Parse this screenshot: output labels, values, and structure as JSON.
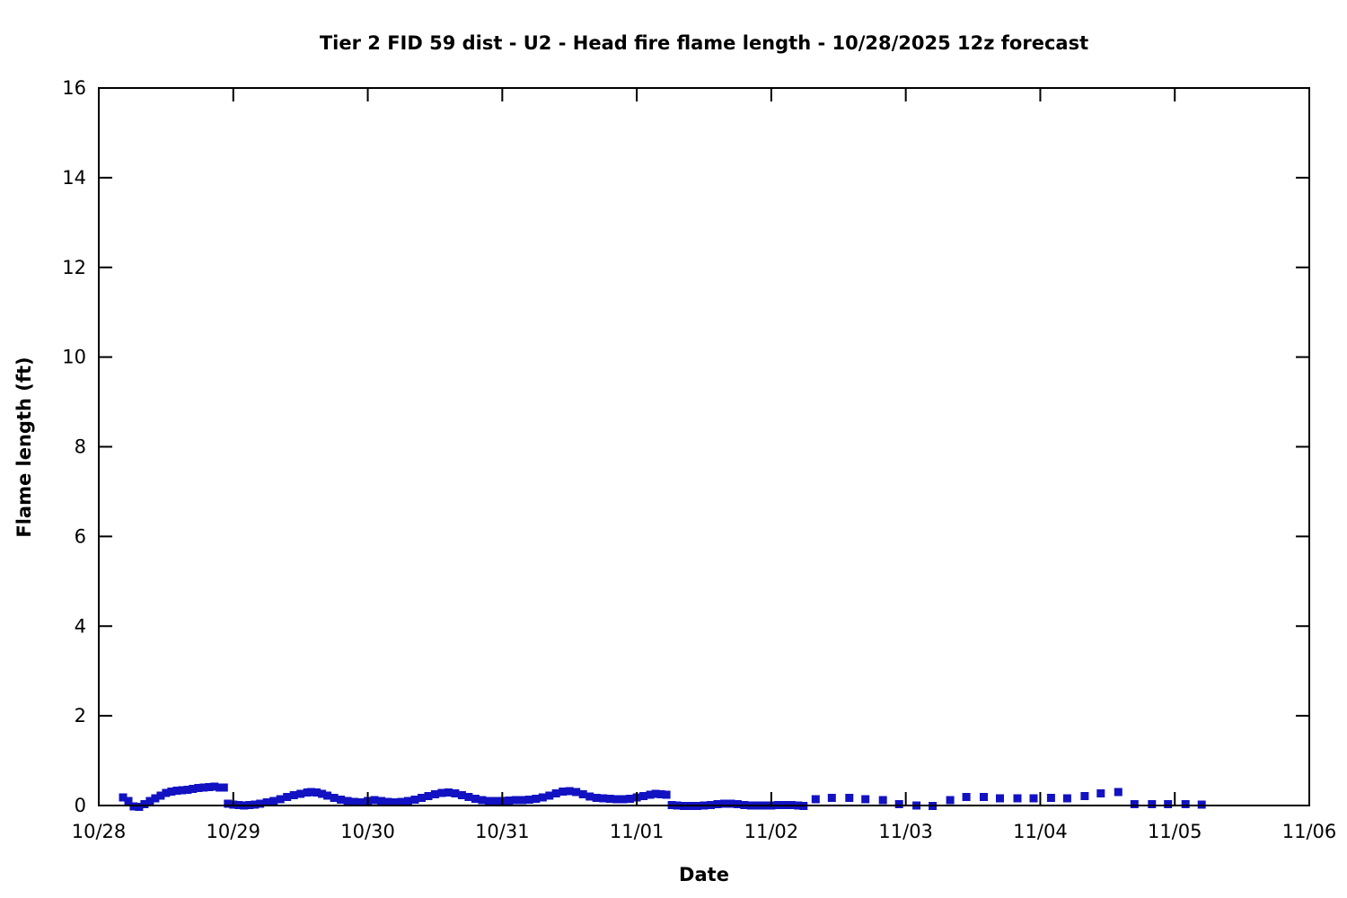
{
  "title": "Tier 2 FID 59 dist - U2 - Head fire flame length - 10/28/2025 12z forecast",
  "chart_data": {
    "type": "scatter",
    "title": "Tier 2 FID 59 dist - U2 - Head fire flame length - 10/28/2025 12z forecast",
    "xlabel": "Date",
    "ylabel": "Flame length (ft)",
    "xlim_days": [
      0,
      9
    ],
    "ylim": [
      0,
      16
    ],
    "grid": false,
    "legend": "none",
    "x_ticks": [
      {
        "t": 0,
        "label": "10/28"
      },
      {
        "t": 1,
        "label": "10/29"
      },
      {
        "t": 2,
        "label": "10/30"
      },
      {
        "t": 3,
        "label": "10/31"
      },
      {
        "t": 4,
        "label": "11/01"
      },
      {
        "t": 5,
        "label": "11/02"
      },
      {
        "t": 6,
        "label": "11/03"
      },
      {
        "t": 7,
        "label": "11/04"
      },
      {
        "t": 8,
        "label": "11/05"
      },
      {
        "t": 9,
        "label": "11/06"
      }
    ],
    "y_ticks": [
      0,
      2,
      4,
      6,
      8,
      10,
      12,
      14,
      16
    ],
    "marker_color": "#1212c2",
    "marker_size": 9,
    "axis_color": "#000000",
    "series": [
      {
        "name": "head-fire-flame-length-hourly",
        "style": "dense",
        "points": [
          [
            0.18,
            0.18
          ],
          [
            0.22,
            0.1
          ],
          [
            0.26,
            -0.02
          ],
          [
            0.3,
            -0.03
          ],
          [
            0.34,
            0.03
          ],
          [
            0.38,
            0.1
          ],
          [
            0.42,
            0.16
          ],
          [
            0.46,
            0.22
          ],
          [
            0.5,
            0.28
          ],
          [
            0.54,
            0.31
          ],
          [
            0.58,
            0.33
          ],
          [
            0.62,
            0.34
          ],
          [
            0.66,
            0.35
          ],
          [
            0.7,
            0.37
          ],
          [
            0.74,
            0.39
          ],
          [
            0.78,
            0.4
          ],
          [
            0.82,
            0.41
          ],
          [
            0.86,
            0.42
          ],
          [
            0.9,
            0.4
          ],
          [
            0.93,
            0.4
          ],
          [
            0.96,
            0.04
          ],
          [
            1.0,
            0.02
          ],
          [
            1.04,
            0.01
          ],
          [
            1.08,
            0.0
          ],
          [
            1.12,
            0.01
          ],
          [
            1.16,
            0.02
          ],
          [
            1.2,
            0.04
          ],
          [
            1.25,
            0.07
          ],
          [
            1.3,
            0.1
          ],
          [
            1.35,
            0.14
          ],
          [
            1.4,
            0.19
          ],
          [
            1.45,
            0.23
          ],
          [
            1.5,
            0.26
          ],
          [
            1.55,
            0.29
          ],
          [
            1.58,
            0.3
          ],
          [
            1.62,
            0.29
          ],
          [
            1.66,
            0.26
          ],
          [
            1.7,
            0.22
          ],
          [
            1.75,
            0.17
          ],
          [
            1.8,
            0.13
          ],
          [
            1.85,
            0.1
          ],
          [
            1.9,
            0.08
          ],
          [
            1.95,
            0.07
          ],
          [
            2.0,
            0.1
          ],
          [
            2.05,
            0.12
          ],
          [
            2.1,
            0.1
          ],
          [
            2.15,
            0.08
          ],
          [
            2.2,
            0.07
          ],
          [
            2.25,
            0.08
          ],
          [
            2.3,
            0.1
          ],
          [
            2.35,
            0.13
          ],
          [
            2.4,
            0.17
          ],
          [
            2.45,
            0.21
          ],
          [
            2.5,
            0.25
          ],
          [
            2.55,
            0.28
          ],
          [
            2.6,
            0.29
          ],
          [
            2.65,
            0.27
          ],
          [
            2.7,
            0.23
          ],
          [
            2.75,
            0.19
          ],
          [
            2.8,
            0.15
          ],
          [
            2.85,
            0.12
          ],
          [
            2.9,
            0.1
          ],
          [
            2.95,
            0.1
          ],
          [
            3.0,
            0.1
          ],
          [
            3.05,
            0.11
          ],
          [
            3.1,
            0.12
          ],
          [
            3.15,
            0.12
          ],
          [
            3.2,
            0.13
          ],
          [
            3.25,
            0.15
          ],
          [
            3.3,
            0.18
          ],
          [
            3.35,
            0.22
          ],
          [
            3.4,
            0.27
          ],
          [
            3.45,
            0.31
          ],
          [
            3.5,
            0.32
          ],
          [
            3.55,
            0.3
          ],
          [
            3.6,
            0.25
          ],
          [
            3.65,
            0.2
          ],
          [
            3.7,
            0.17
          ],
          [
            3.75,
            0.16
          ],
          [
            3.8,
            0.15
          ],
          [
            3.85,
            0.14
          ],
          [
            3.9,
            0.14
          ],
          [
            3.95,
            0.15
          ],
          [
            4.0,
            0.18
          ],
          [
            4.05,
            0.21
          ],
          [
            4.1,
            0.24
          ],
          [
            4.14,
            0.26
          ],
          [
            4.18,
            0.25
          ],
          [
            4.22,
            0.24
          ],
          [
            4.26,
            0.01
          ],
          [
            4.3,
            0.0
          ],
          [
            4.35,
            -0.01
          ],
          [
            4.4,
            -0.01
          ],
          [
            4.45,
            -0.01
          ],
          [
            4.5,
            0.0
          ],
          [
            4.55,
            0.01
          ],
          [
            4.6,
            0.03
          ],
          [
            4.65,
            0.04
          ],
          [
            4.7,
            0.04
          ],
          [
            4.75,
            0.03
          ],
          [
            4.8,
            0.01
          ],
          [
            4.85,
            0.0
          ],
          [
            4.9,
            0.0
          ],
          [
            4.95,
            0.0
          ],
          [
            5.0,
            0.0
          ],
          [
            5.05,
            0.01
          ],
          [
            5.1,
            0.01
          ],
          [
            5.15,
            0.01
          ],
          [
            5.2,
            0.0
          ],
          [
            5.24,
            -0.01
          ]
        ]
      },
      {
        "name": "head-fire-flame-length-3hourly",
        "style": "sparse",
        "points": [
          [
            5.33,
            0.14
          ],
          [
            5.45,
            0.17
          ],
          [
            5.58,
            0.17
          ],
          [
            5.7,
            0.14
          ],
          [
            5.83,
            0.12
          ],
          [
            5.95,
            0.03
          ],
          [
            6.08,
            0.0
          ],
          [
            6.2,
            -0.01
          ],
          [
            6.33,
            0.12
          ],
          [
            6.45,
            0.19
          ],
          [
            6.58,
            0.19
          ],
          [
            6.7,
            0.16
          ],
          [
            6.83,
            0.16
          ],
          [
            6.95,
            0.16
          ],
          [
            7.08,
            0.17
          ],
          [
            7.2,
            0.16
          ],
          [
            7.33,
            0.21
          ],
          [
            7.45,
            0.27
          ],
          [
            7.58,
            0.3
          ],
          [
            7.7,
            0.03
          ],
          [
            7.83,
            0.03
          ],
          [
            7.95,
            0.03
          ],
          [
            8.08,
            0.03
          ],
          [
            8.2,
            0.02
          ]
        ]
      }
    ]
  }
}
